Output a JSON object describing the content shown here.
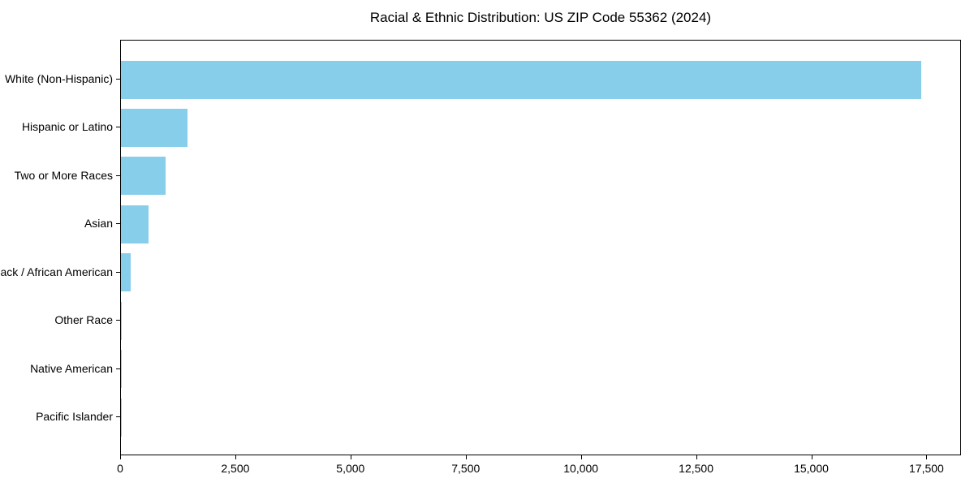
{
  "chart_data": {
    "type": "bar",
    "orientation": "horizontal",
    "title": "Racial & Ethnic Distribution: US ZIP Code 55362 (2024)",
    "categories": [
      "White (Non-Hispanic)",
      "Hispanic or Latino",
      "Two or More Races",
      "Asian",
      "Black / African American",
      "Other Race",
      "Native American",
      "Pacific Islander"
    ],
    "values": [
      17400,
      1450,
      970,
      600,
      215,
      25,
      10,
      4
    ],
    "xlabel": "",
    "ylabel": "",
    "xlim": [
      0,
      18250
    ],
    "xticks": [
      0,
      2500,
      5000,
      7500,
      10000,
      12500,
      15000,
      17500
    ],
    "xtick_labels": [
      "0",
      "2,500",
      "5,000",
      "7,500",
      "10,000",
      "12,500",
      "15,000",
      "17,500"
    ],
    "bar_color": "#87CEEB",
    "grid": false,
    "legend": null
  }
}
